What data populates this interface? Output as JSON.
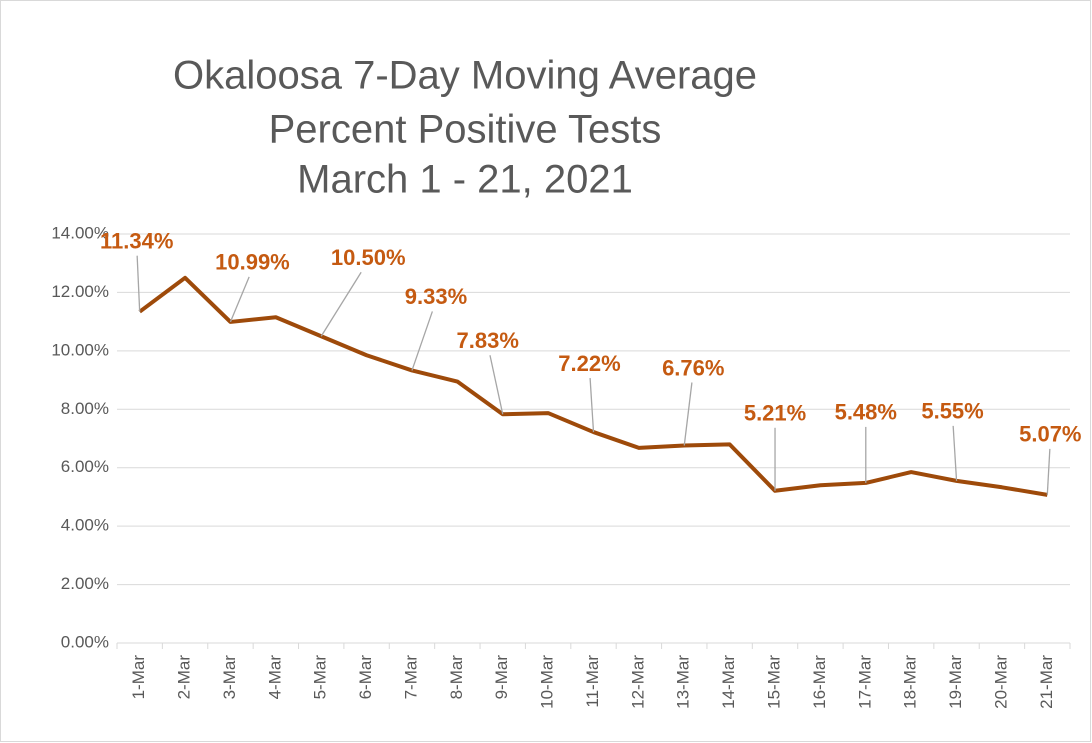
{
  "chart_data": {
    "type": "line",
    "title": [
      "Okaloosa 7-Day Moving Average",
      "Percent Positive Tests",
      "March 1 - 21, 2021"
    ],
    "categories": [
      "1-Mar",
      "2-Mar",
      "3-Mar",
      "4-Mar",
      "5-Mar",
      "6-Mar",
      "7-Mar",
      "8-Mar",
      "9-Mar",
      "10-Mar",
      "11-Mar",
      "12-Mar",
      "13-Mar",
      "14-Mar",
      "15-Mar",
      "16-Mar",
      "17-Mar",
      "18-Mar",
      "19-Mar",
      "20-Mar",
      "21-Mar"
    ],
    "series": [
      {
        "name": "7-Day Moving Average",
        "color": "#9e4a0a",
        "values": [
          11.34,
          12.5,
          10.99,
          11.15,
          10.5,
          9.85,
          9.33,
          8.95,
          7.83,
          7.87,
          7.22,
          6.68,
          6.76,
          6.8,
          5.21,
          5.4,
          5.48,
          5.85,
          5.55,
          5.33,
          5.07
        ],
        "value_labels": [
          "11.34%",
          null,
          "10.99%",
          null,
          "10.50%",
          null,
          "9.33%",
          null,
          "7.83%",
          null,
          "7.22%",
          null,
          "6.76%",
          null,
          "5.21%",
          null,
          "5.48%",
          null,
          "5.55%",
          null,
          "5.07%"
        ]
      }
    ],
    "label_color": "#c55a11",
    "ylim": [
      0,
      14
    ],
    "yticks": [
      {
        "value": 0,
        "label": "0.00%"
      },
      {
        "value": 2,
        "label": "2.00%"
      },
      {
        "value": 4,
        "label": "4.00%"
      },
      {
        "value": 6,
        "label": "6.00%"
      },
      {
        "value": 8,
        "label": "8.00%"
      },
      {
        "value": 10,
        "label": "10.00%"
      },
      {
        "value": 12,
        "label": "12.00%"
      },
      {
        "value": 14,
        "label": "14.00%"
      }
    ],
    "grid": true
  }
}
